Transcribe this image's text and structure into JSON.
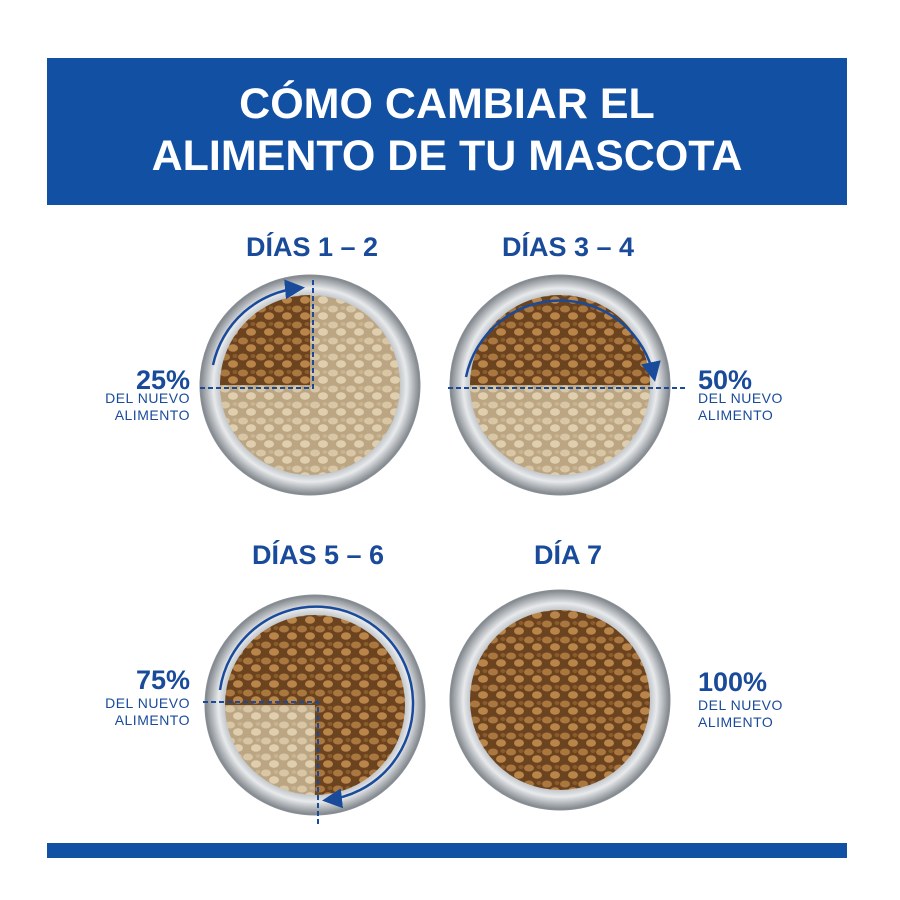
{
  "header": {
    "title_lines": [
      "CÓMO CAMBIAR EL",
      "ALIMENTO DE TU MASCOTA"
    ]
  },
  "steps": [
    {
      "days": "DÍAS 1 – 2",
      "percent": "25%",
      "caption_lines": [
        "DEL NUEVO",
        "ALIMENTO"
      ]
    },
    {
      "days": "DÍAS 3 – 4",
      "percent": "50%",
      "caption_lines": [
        "DEL NUEVO",
        "ALIMENTO"
      ]
    },
    {
      "days": "DÍAS 5 – 6",
      "percent": "75%",
      "caption_lines": [
        "DEL NUEVO",
        "ALIMENTO"
      ]
    },
    {
      "days": "DÍA 7",
      "percent": "100%",
      "caption_lines": [
        "DEL NUEVO",
        "ALIMENTO"
      ]
    }
  ]
}
